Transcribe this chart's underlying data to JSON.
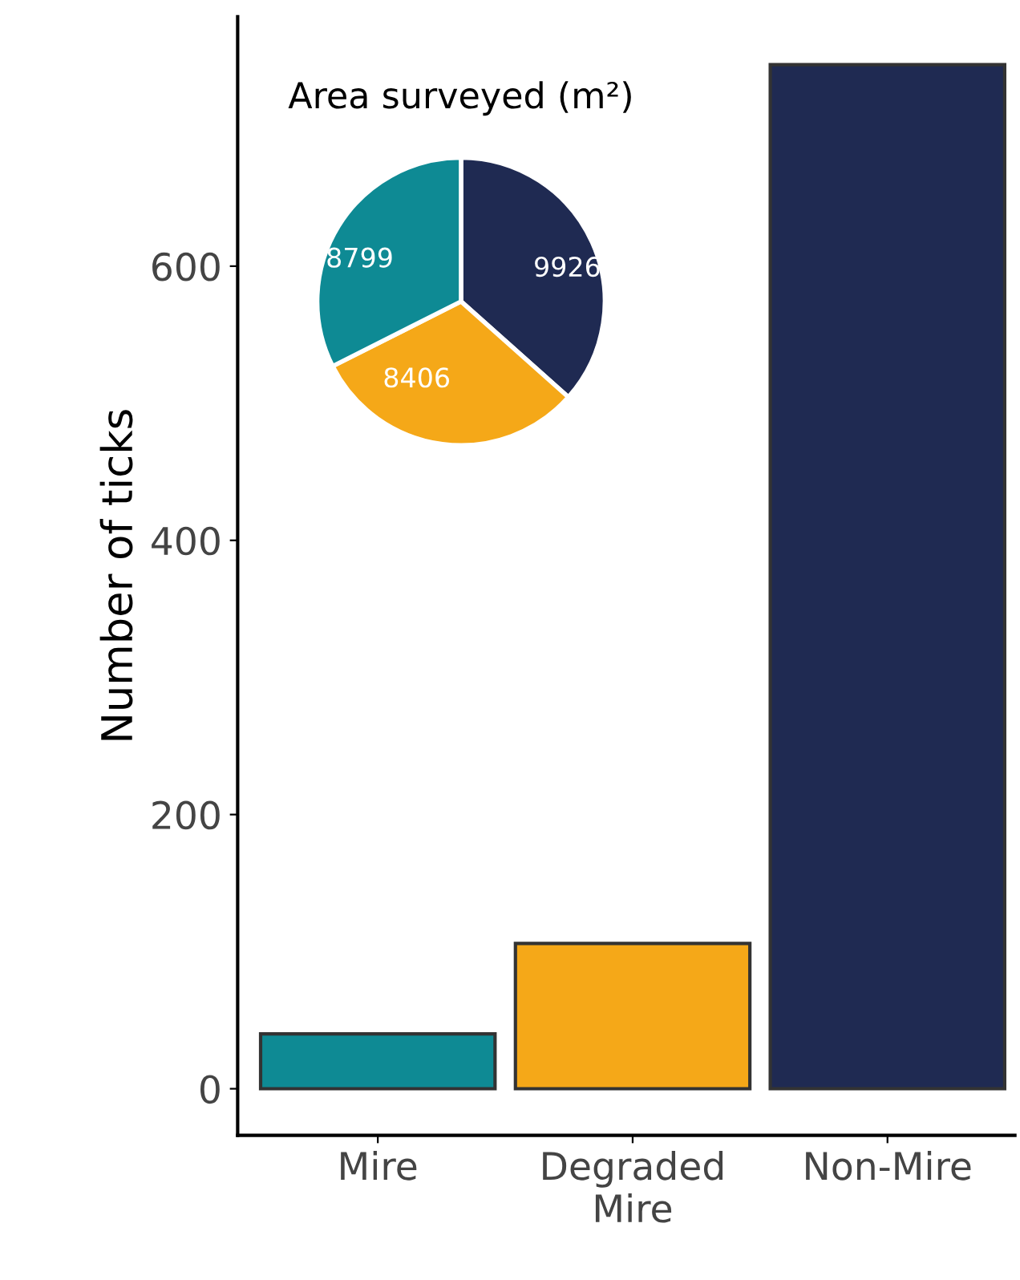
{
  "chart_data": [
    {
      "type": "bar",
      "ylabel": "Number of ticks",
      "categories": [
        "Mire",
        "Degraded\nMire",
        "Non-Mire"
      ],
      "values": [
        40,
        106,
        747
      ],
      "colors": [
        "#0e8a94",
        "#f5a818",
        "#1f2a52"
      ],
      "ylim": [
        -34,
        782
      ],
      "yticks": [
        0,
        200,
        400,
        600
      ],
      "grid": false,
      "legend": false
    },
    {
      "type": "pie",
      "title": "Area surveyed (m²)",
      "categories": [
        null,
        null,
        null
      ],
      "values": [
        9926,
        8406,
        8799
      ],
      "colors": [
        "#1f2a52",
        "#f5a818",
        "#0e8a94"
      ],
      "data_labels": true
    }
  ]
}
